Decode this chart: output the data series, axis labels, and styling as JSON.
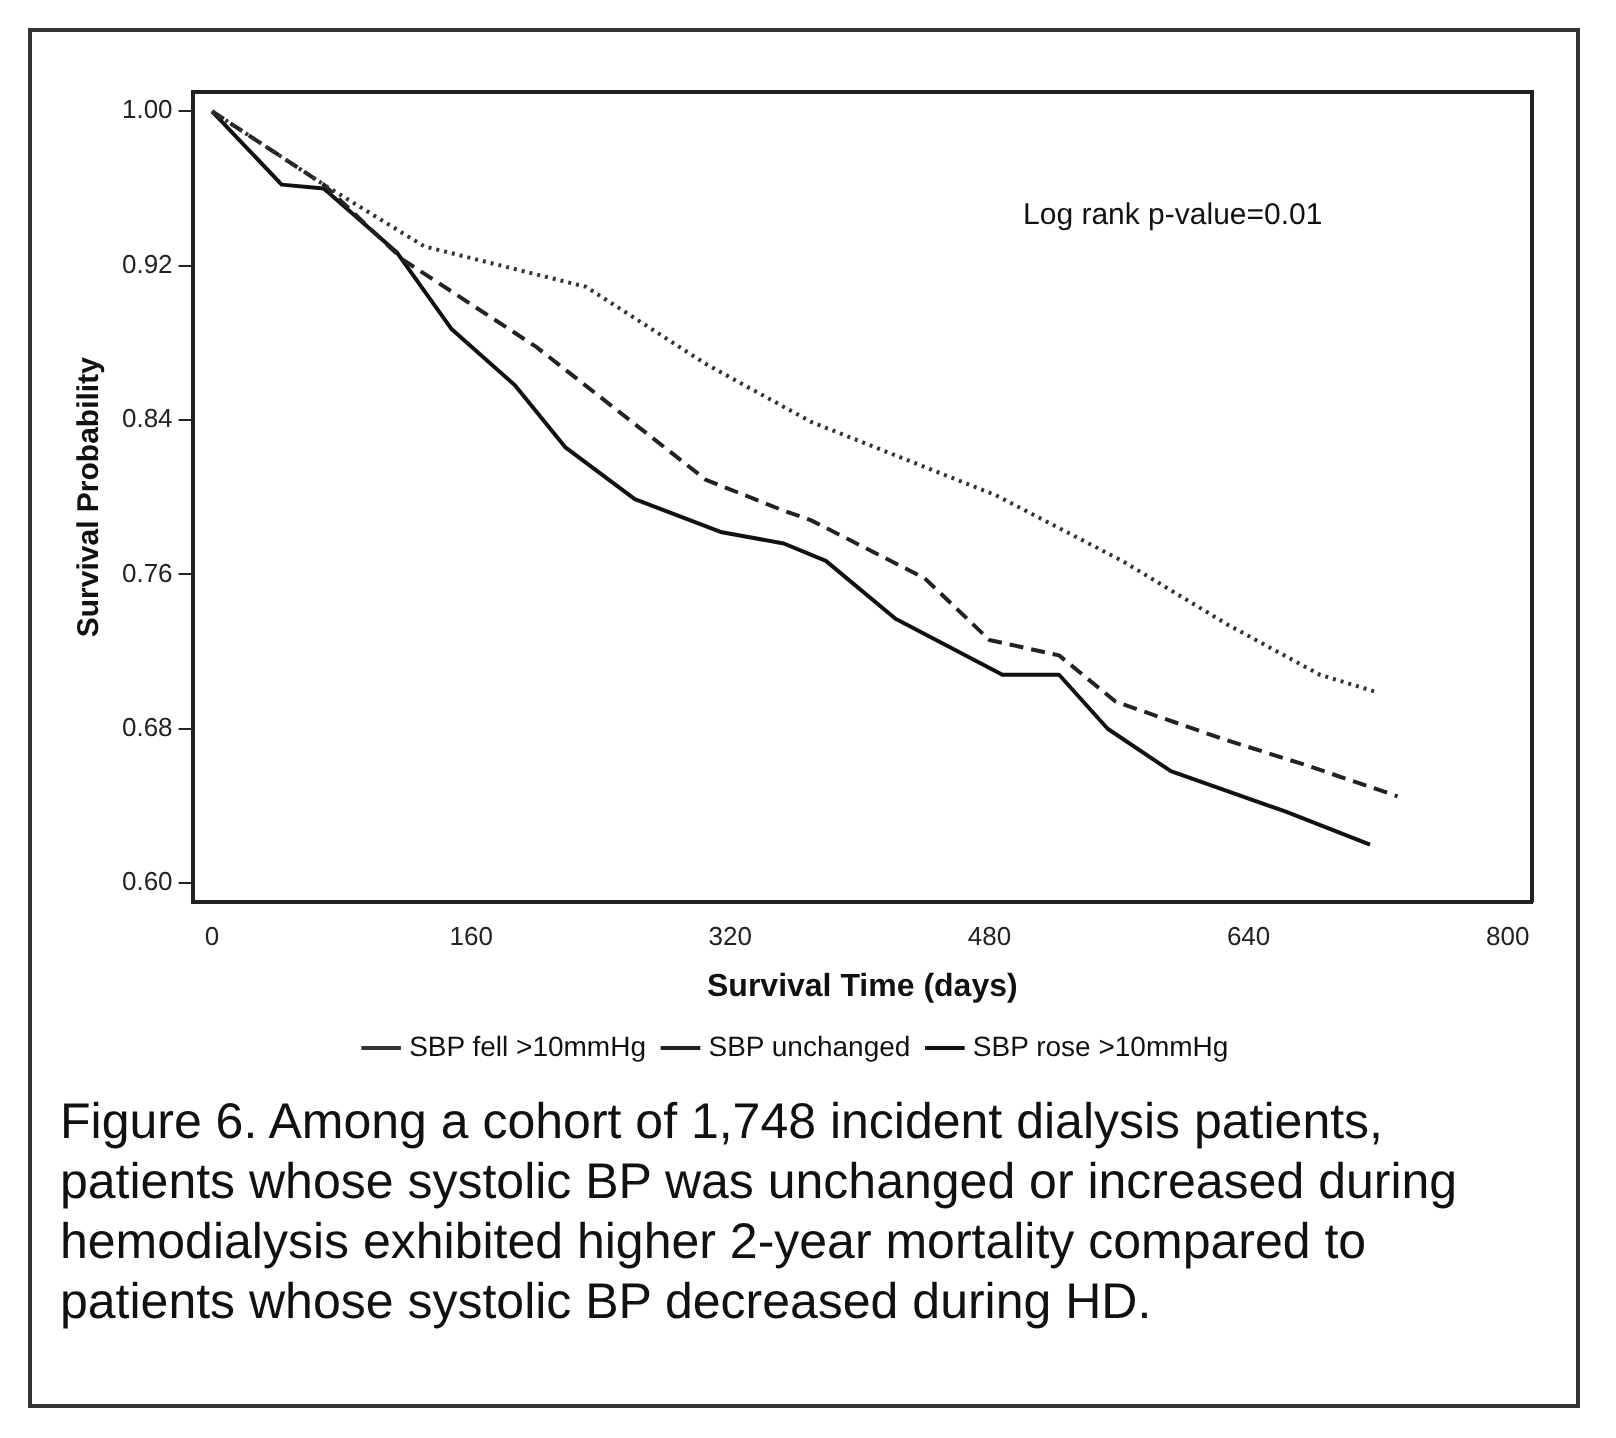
{
  "chart_data": {
    "type": "line",
    "xlabel": "Survival Time (days)",
    "ylabel": "Survival Probability",
    "xlim": [
      -12,
      815
    ],
    "ylim": [
      0.59,
      1.01
    ],
    "xticks": [
      0,
      160,
      320,
      480,
      640,
      800
    ],
    "yticks": [
      {
        "value": 0.6,
        "label": "0.60"
      },
      {
        "value": 0.68,
        "label": "0.68"
      },
      {
        "value": 0.76,
        "label": "0.76"
      },
      {
        "value": 0.84,
        "label": "0.84"
      },
      {
        "value": 0.92,
        "label": "0.92"
      },
      {
        "value": 1.0,
        "label": "1.00"
      }
    ],
    "grid": false,
    "legend": "bottom",
    "marker": "none",
    "series": [
      {
        "name": "SBP fell >10mmHg",
        "color": "#333333",
        "line_style": "dotted",
        "x": [
          0,
          69,
          131,
          231,
          305,
          370,
          484,
          562,
          627,
          684,
          719
        ],
        "values": [
          1.0,
          0.962,
          0.93,
          0.909,
          0.869,
          0.839,
          0.801,
          0.767,
          0.734,
          0.708,
          0.699
        ]
      },
      {
        "name": "SBP unchanged",
        "color": "#222222",
        "line_style": "dashed",
        "x": [
          0,
          69,
          118,
          200,
          305,
          353,
          370,
          440,
          480,
          523,
          558,
          623,
          676,
          732
        ],
        "values": [
          1.0,
          0.962,
          0.923,
          0.878,
          0.809,
          0.793,
          0.788,
          0.758,
          0.726,
          0.718,
          0.694,
          0.675,
          0.661,
          0.645
        ]
      },
      {
        "name": "SBP rose >10mmHg",
        "color": "#111111",
        "line_style": "solid",
        "x": [
          0,
          43,
          69,
          114,
          148,
          187,
          218,
          261,
          314,
          353,
          379,
          422,
          488,
          523,
          553,
          592,
          663,
          715
        ],
        "values": [
          1.0,
          0.962,
          0.96,
          0.927,
          0.887,
          0.858,
          0.826,
          0.799,
          0.782,
          0.776,
          0.767,
          0.737,
          0.708,
          0.708,
          0.68,
          0.658,
          0.637,
          0.62
        ]
      }
    ],
    "annotations": [
      "Log rank p-value=0.01",
      "Figure 6.  Among a cohort of 1,748 incident dialysis patients, patients whose systolic BP was unchanged or increased during hemodialysis exhibited higher 2-year mortality compared to patients whose systolic BP decreased during HD."
    ]
  }
}
